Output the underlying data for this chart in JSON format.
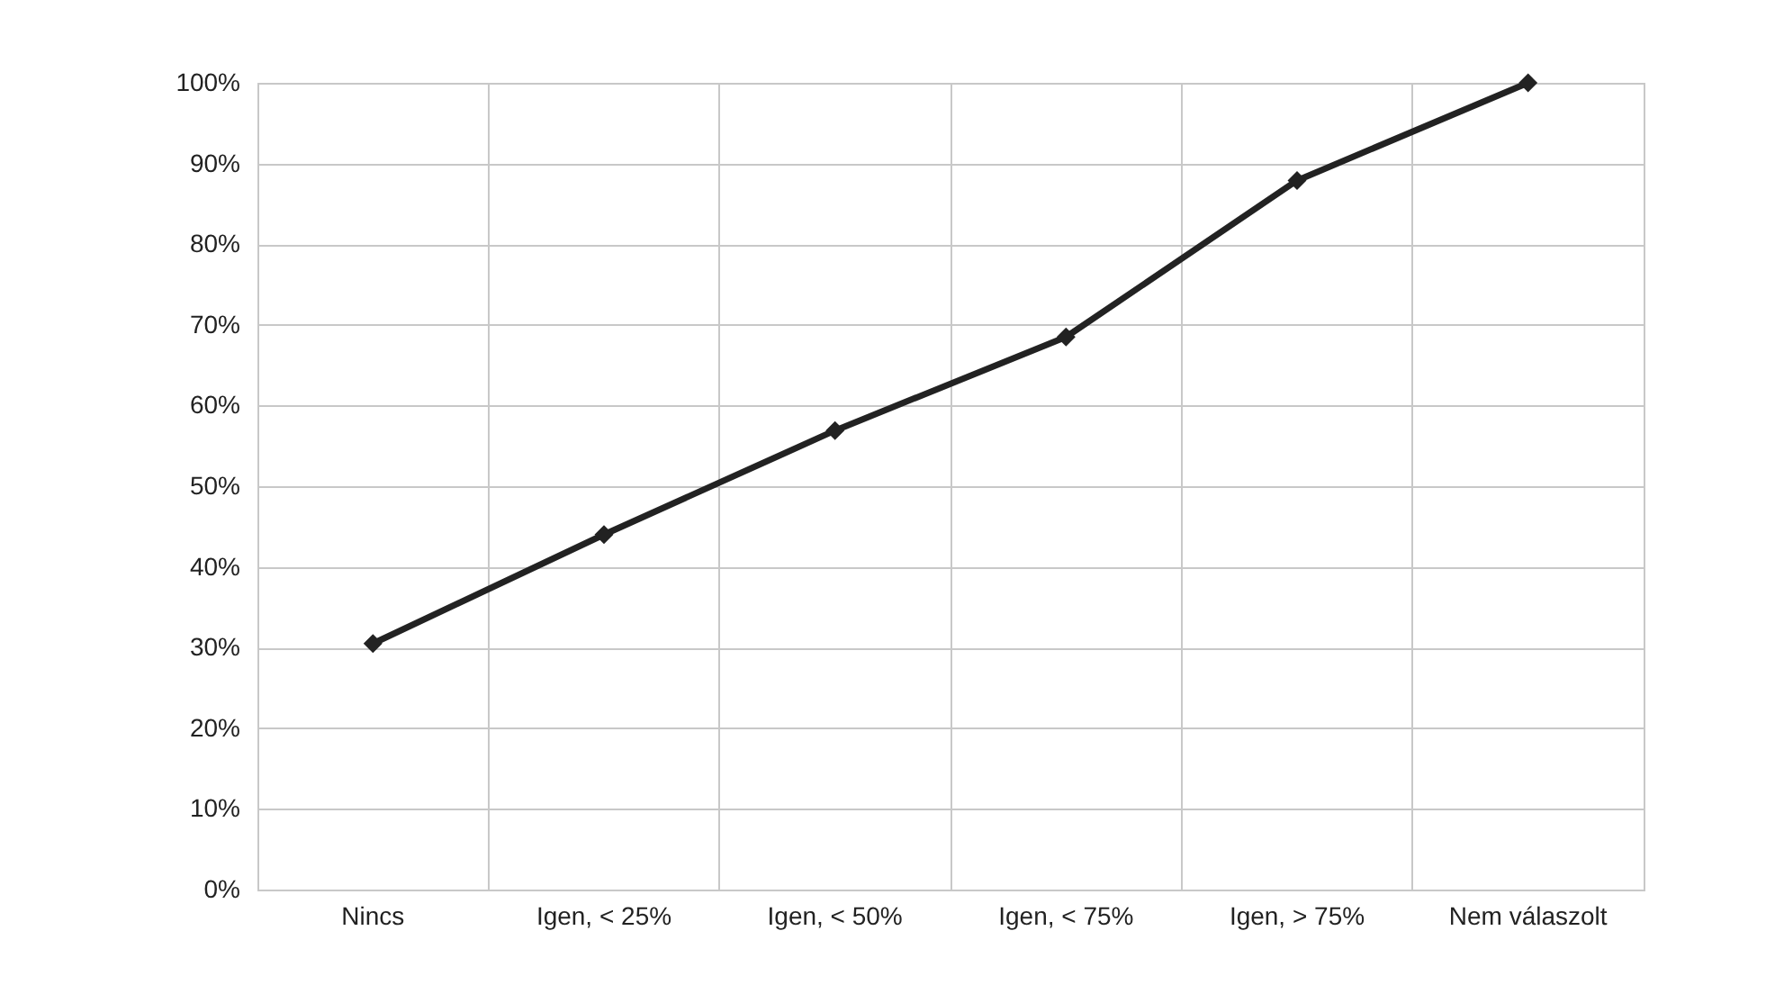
{
  "chart_data": {
    "type": "line",
    "categories": [
      "Nincs",
      "Igen, < 25%",
      "Igen, < 50%",
      "Igen, < 75%",
      "Igen, > 75%",
      "Nem válaszolt"
    ],
    "series": [
      {
        "color": "#222222",
        "values": [
          30.5,
          44,
          56.9,
          68.5,
          87.9,
          100
        ]
      }
    ],
    "ylim": [
      0,
      100
    ],
    "yticks": [
      {
        "value": 0,
        "label": "0%"
      },
      {
        "value": 10,
        "label": "10%"
      },
      {
        "value": 20,
        "label": "20%"
      },
      {
        "value": 30,
        "label": "30%"
      },
      {
        "value": 40,
        "label": "40%"
      },
      {
        "value": 50,
        "label": "50%"
      },
      {
        "value": 60,
        "label": "60%"
      },
      {
        "value": 70,
        "label": "70%"
      },
      {
        "value": 80,
        "label": "80%"
      },
      {
        "value": 90,
        "label": "90%"
      },
      {
        "value": 100,
        "label": "100%"
      }
    ],
    "grid": true,
    "marker": "diamond",
    "line_style": "solid"
  }
}
